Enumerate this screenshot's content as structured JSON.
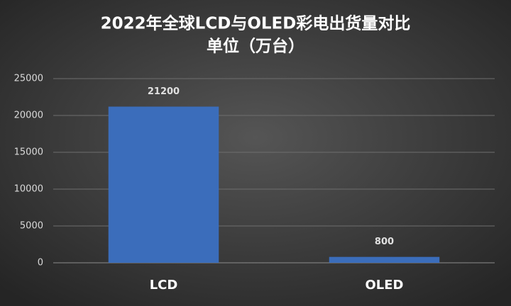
{
  "chart_data": {
    "type": "bar",
    "title": "2022年全球LCD与OLED彩电出货量对比",
    "subtitle": "单位（万台）",
    "categories": [
      "LCD",
      "OLED"
    ],
    "values": [
      21200,
      800
    ],
    "color": "#3b6dbb",
    "ylim": [
      0,
      25000
    ],
    "yticks": [
      0,
      5000,
      10000,
      15000,
      20000,
      25000
    ],
    "grid": true
  }
}
